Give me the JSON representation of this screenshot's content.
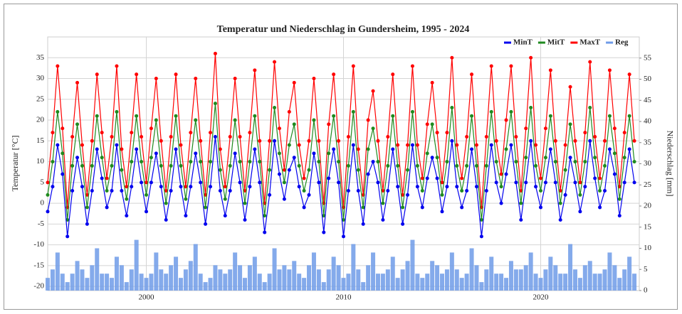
{
  "chart_data": {
    "type": "line",
    "title": "Temperatur und Niederschlag in Gundersheim, 1995 - 2024",
    "ylabel": "Temperatur [°C]",
    "y2label": "Niederschlag [mm]",
    "xlim": [
      1995,
      2025
    ],
    "xticks": [
      2000,
      2010,
      2020
    ],
    "ylim": [
      -21,
      40
    ],
    "yticks": [
      -20,
      -15,
      -10,
      -5,
      0,
      5,
      10,
      15,
      20,
      25,
      30,
      35
    ],
    "y2lim": [
      0,
      60
    ],
    "y2ticks": [
      0,
      5,
      10,
      15,
      20,
      25,
      30,
      35,
      40,
      45,
      50,
      55
    ],
    "grid": true,
    "legend": "top-right",
    "x": [
      1995,
      1995.25,
      1995.5,
      1995.75,
      1996,
      1996.25,
      1996.5,
      1996.75,
      1997,
      1997.25,
      1997.5,
      1997.75,
      1998,
      1998.25,
      1998.5,
      1998.75,
      1999,
      1999.25,
      1999.5,
      1999.75,
      2000,
      2000.25,
      2000.5,
      2000.75,
      2001,
      2001.25,
      2001.5,
      2001.75,
      2002,
      2002.25,
      2002.5,
      2002.75,
      2003,
      2003.25,
      2003.5,
      2003.75,
      2004,
      2004.25,
      2004.5,
      2004.75,
      2005,
      2005.25,
      2005.5,
      2005.75,
      2006,
      2006.25,
      2006.5,
      2006.75,
      2007,
      2007.25,
      2007.5,
      2007.75,
      2008,
      2008.25,
      2008.5,
      2008.75,
      2009,
      2009.25,
      2009.5,
      2009.75,
      2010,
      2010.25,
      2010.5,
      2010.75,
      2011,
      2011.25,
      2011.5,
      2011.75,
      2012,
      2012.25,
      2012.5,
      2012.75,
      2013,
      2013.25,
      2013.5,
      2013.75,
      2014,
      2014.25,
      2014.5,
      2014.75,
      2015,
      2015.25,
      2015.5,
      2015.75,
      2016,
      2016.25,
      2016.5,
      2016.75,
      2017,
      2017.25,
      2017.5,
      2017.75,
      2018,
      2018.25,
      2018.5,
      2018.75,
      2019,
      2019.25,
      2019.5,
      2019.75,
      2020,
      2020.25,
      2020.5,
      2020.75,
      2021,
      2021.25,
      2021.5,
      2021.75,
      2022,
      2022.25,
      2022.5,
      2022.75,
      2023,
      2023.25,
      2023.5,
      2023.75,
      2024,
      2024.25,
      2024.5,
      2024.75
    ],
    "series": [
      {
        "name": "Reg",
        "color": "#6f9be8",
        "type": "bar",
        "axis": "y2",
        "values": [
          3,
          5,
          9,
          4,
          2,
          4,
          7,
          5,
          3,
          6,
          10,
          4,
          4,
          3,
          8,
          6,
          2,
          5,
          12,
          4,
          3,
          4,
          9,
          5,
          4,
          6,
          8,
          3,
          5,
          7,
          11,
          4,
          2,
          3,
          6,
          5,
          4,
          5,
          9,
          6,
          3,
          6,
          8,
          4,
          2,
          4,
          10,
          5,
          6,
          5,
          7,
          4,
          3,
          6,
          9,
          5,
          2,
          5,
          8,
          6,
          3,
          4,
          11,
          5,
          2,
          6,
          9,
          4,
          4,
          5,
          8,
          3,
          5,
          7,
          12,
          4,
          3,
          4,
          7,
          6,
          4,
          5,
          9,
          5,
          3,
          4,
          10,
          6,
          2,
          5,
          8,
          4,
          4,
          3,
          7,
          5,
          5,
          6,
          9,
          4,
          3,
          5,
          8,
          6,
          4,
          4,
          11,
          5,
          3,
          6,
          7,
          4,
          4,
          5,
          9,
          6,
          3,
          5,
          8,
          4
        ]
      },
      {
        "name": "MaxT",
        "color": "#ff0000",
        "values": [
          5,
          17,
          33,
          18,
          -1,
          16,
          29,
          14,
          2,
          15,
          31,
          17,
          6,
          16,
          33,
          13,
          4,
          17,
          31,
          16,
          5,
          18,
          30,
          15,
          3,
          16,
          31,
          14,
          4,
          17,
          30,
          15,
          2,
          17,
          36,
          13,
          4,
          16,
          30,
          16,
          3,
          17,
          32,
          15,
          0,
          15,
          34,
          18,
          8,
          22,
          29,
          14,
          6,
          15,
          30,
          15,
          0,
          19,
          31,
          15,
          -1,
          16,
          33,
          13,
          2,
          20,
          27,
          15,
          3,
          16,
          31,
          14,
          2,
          14,
          33,
          14,
          6,
          19,
          29,
          17,
          5,
          17,
          35,
          14,
          6,
          16,
          31,
          14,
          -1,
          16,
          33,
          15,
          7,
          20,
          33,
          16,
          3,
          18,
          35,
          14,
          6,
          18,
          32,
          15,
          3,
          14,
          28,
          15,
          5,
          17,
          34,
          16,
          6,
          15,
          32,
          18,
          4,
          17,
          31,
          15
        ]
      },
      {
        "name": "MitT",
        "color": "#1f8a1f",
        "values": [
          2,
          10,
          22,
          12,
          -4,
          9,
          19,
          9,
          -1,
          9,
          21,
          11,
          3,
          9,
          22,
          8,
          1,
          10,
          21,
          10,
          2,
          11,
          20,
          9,
          0,
          9,
          21,
          9,
          1,
          10,
          20,
          10,
          -1,
          10,
          24,
          8,
          1,
          9,
          20,
          10,
          0,
          10,
          21,
          10,
          -3,
          8,
          23,
          12,
          5,
          14,
          19,
          9,
          3,
          8,
          20,
          10,
          -3,
          12,
          21,
          10,
          -4,
          9,
          22,
          8,
          -1,
          13,
          18,
          10,
          0,
          9,
          21,
          9,
          -1,
          8,
          22,
          9,
          3,
          12,
          19,
          11,
          2,
          10,
          23,
          9,
          3,
          9,
          21,
          9,
          -4,
          9,
          22,
          10,
          4,
          13,
          22,
          10,
          0,
          11,
          23,
          9,
          3,
          11,
          21,
          10,
          0,
          8,
          19,
          10,
          2,
          10,
          23,
          11,
          3,
          9,
          21,
          12,
          1,
          11,
          21,
          10
        ]
      },
      {
        "name": "MinT",
        "color": "#0000ee",
        "values": [
          -2,
          4,
          14,
          7,
          -8,
          3,
          11,
          4,
          -5,
          3,
          13,
          6,
          -1,
          3,
          14,
          3,
          -3,
          4,
          13,
          5,
          -2,
          5,
          12,
          4,
          -4,
          3,
          13,
          4,
          -3,
          4,
          12,
          5,
          -5,
          4,
          16,
          3,
          -3,
          3,
          12,
          5,
          -4,
          4,
          13,
          5,
          -7,
          2,
          15,
          7,
          1,
          8,
          11,
          4,
          -1,
          2,
          12,
          5,
          -7,
          6,
          13,
          5,
          -8,
          3,
          14,
          3,
          -5,
          7,
          10,
          5,
          -4,
          3,
          13,
          4,
          -5,
          2,
          14,
          4,
          -1,
          6,
          11,
          6,
          -2,
          4,
          15,
          4,
          -1,
          3,
          13,
          4,
          -8,
          3,
          14,
          5,
          0,
          7,
          14,
          5,
          -4,
          5,
          15,
          4,
          -1,
          5,
          13,
          5,
          -4,
          2,
          11,
          5,
          -2,
          4,
          15,
          6,
          -1,
          3,
          13,
          7,
          -3,
          5,
          13,
          5
        ]
      }
    ]
  }
}
